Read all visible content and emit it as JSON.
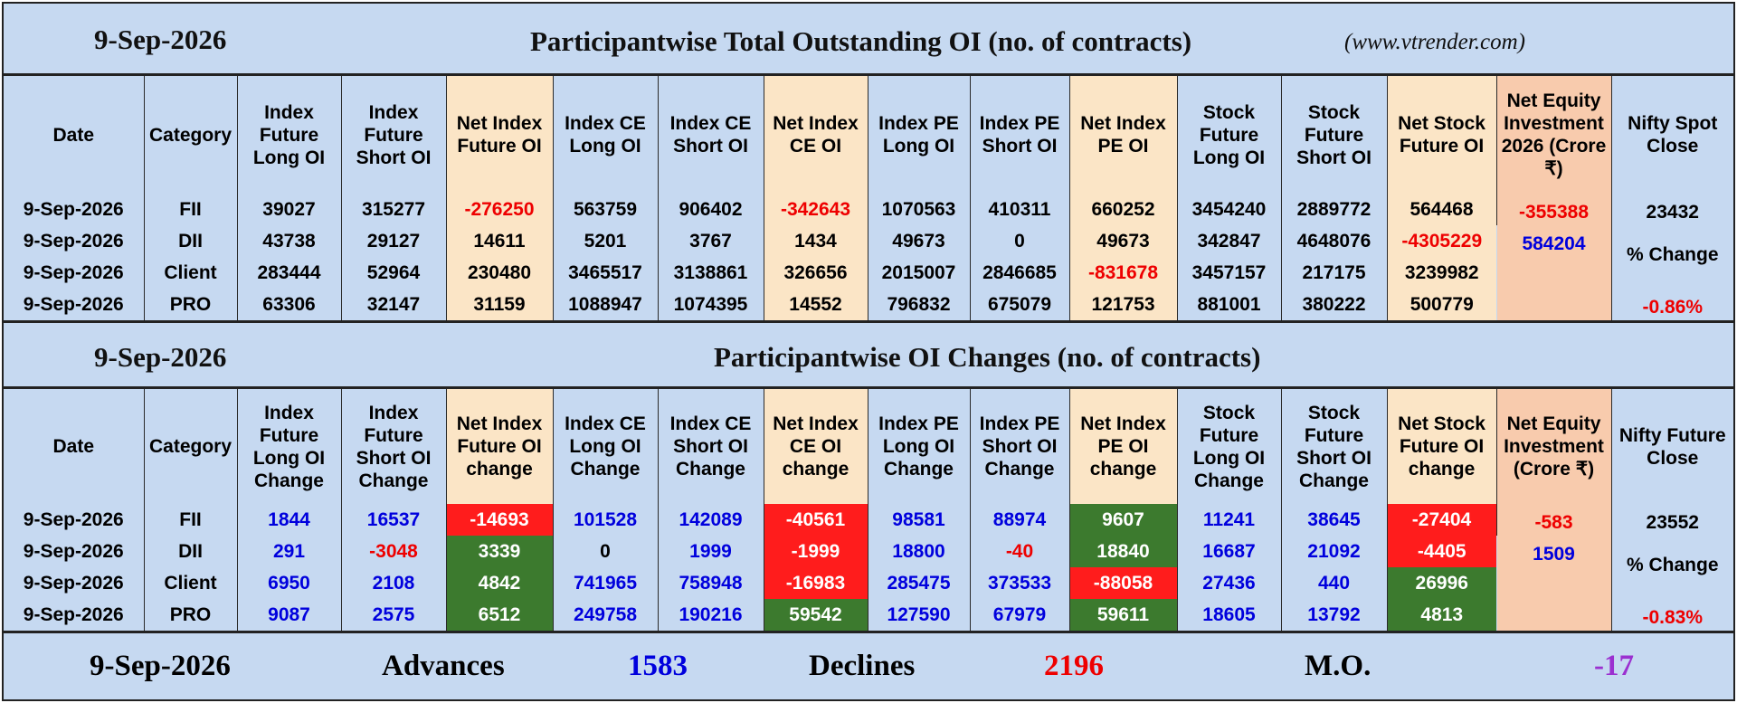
{
  "section1": {
    "date": "9-Sep-2026",
    "title": "Participantwise Total Outstanding OI (no. of contracts)",
    "site": "(www.vtrender.com)",
    "headers": [
      "Date",
      "Category",
      "Index Future Long OI",
      "Index Future Short OI",
      "Net Index Future OI",
      "Index CE Long OI",
      "Index CE Short OI",
      "Net Index CE OI",
      "Index PE Long OI",
      "Index PE Short OI",
      "Net Index PE OI",
      "Stock Future Long OI",
      "Stock Future Short OI",
      "Net Stock Future OI",
      "Net Equity Investment 2026 (Crore ₹)",
      "Nifty Spot Close"
    ],
    "rows": [
      {
        "date": "9-Sep-2026",
        "category": "FII",
        "cells": [
          "39027",
          "315277",
          "-276250",
          "563759",
          "906402",
          "-342643",
          "1070563",
          "410311",
          "660252",
          "3454240",
          "2889772",
          "564468"
        ],
        "equity": "-355388"
      },
      {
        "date": "9-Sep-2026",
        "category": "DII",
        "cells": [
          "43738",
          "29127",
          "14611",
          "5201",
          "3767",
          "1434",
          "49673",
          "0",
          "49673",
          "342847",
          "4648076",
          "-4305229"
        ],
        "equity": "584204"
      },
      {
        "date": "9-Sep-2026",
        "category": "Client",
        "cells": [
          "283444",
          "52964",
          "230480",
          "3465517",
          "3138861",
          "326656",
          "2015007",
          "2846685",
          "-831678",
          "3457157",
          "217175",
          "3239982"
        ],
        "equity": ""
      },
      {
        "date": "9-Sep-2026",
        "category": "PRO",
        "cells": [
          "63306",
          "32147",
          "31159",
          "1088947",
          "1074395",
          "14552",
          "796832",
          "675079",
          "121753",
          "881001",
          "380222",
          "500779"
        ],
        "equity": ""
      }
    ],
    "nifty": {
      "value": "23432",
      "change_label": "% Change",
      "change": "-0.86%"
    }
  },
  "section2": {
    "date": "9-Sep-2026",
    "title": "Participantwise OI Changes (no. of contracts)",
    "headers": [
      "Date",
      "Category",
      "Index Future Long OI Change",
      "Index Future Short OI Change",
      "Net Index Future OI change",
      "Index CE Long OI Change",
      "Index CE Short OI Change",
      "Net Index CE OI change",
      "Index PE Long OI Change",
      "Index PE Short OI Change",
      "Net Index PE OI change",
      "Stock Future Long OI Change",
      "Stock Future Short OI Change",
      "Net Stock Future OI change",
      "Net Equity Investment (Crore ₹)",
      "Nifty Future Close"
    ],
    "rows": [
      {
        "date": "9-Sep-2026",
        "category": "FII",
        "cells": [
          "1844",
          "16537",
          "-14693",
          "101528",
          "142089",
          "-40561",
          "98581",
          "88974",
          "9607",
          "11241",
          "38645",
          "-27404"
        ],
        "equity": "-583"
      },
      {
        "date": "9-Sep-2026",
        "category": "DII",
        "cells": [
          "291",
          "-3048",
          "3339",
          "0",
          "1999",
          "-1999",
          "18800",
          "-40",
          "18840",
          "16687",
          "21092",
          "-4405"
        ],
        "equity": "1509"
      },
      {
        "date": "9-Sep-2026",
        "category": "Client",
        "cells": [
          "6950",
          "2108",
          "4842",
          "741965",
          "758948",
          "-16983",
          "285475",
          "373533",
          "-88058",
          "27436",
          "440",
          "26996"
        ],
        "equity": ""
      },
      {
        "date": "9-Sep-2026",
        "category": "PRO",
        "cells": [
          "9087",
          "2575",
          "6512",
          "249758",
          "190216",
          "59542",
          "127590",
          "67979",
          "59611",
          "18605",
          "13792",
          "4813"
        ],
        "equity": ""
      }
    ],
    "nifty": {
      "value": "23552",
      "change_label": "% Change",
      "change": "-0.83%"
    }
  },
  "footer": {
    "date": "9-Sep-2026",
    "advances_label": "Advances",
    "advances": "1583",
    "declines_label": "Declines",
    "declines": "2196",
    "mo_label": "M.O.",
    "mo": "-17"
  },
  "colors": {
    "background": "#c6d9f1",
    "highlight_column": "#fbe5c6",
    "equity_column": "#f8cbad",
    "negative_bg": "#ff1c1c",
    "positive_bg": "#3c7a2e",
    "negative_text": "#ee0000",
    "positive_text": "#0000dd",
    "mo_text": "#9b30d0"
  }
}
